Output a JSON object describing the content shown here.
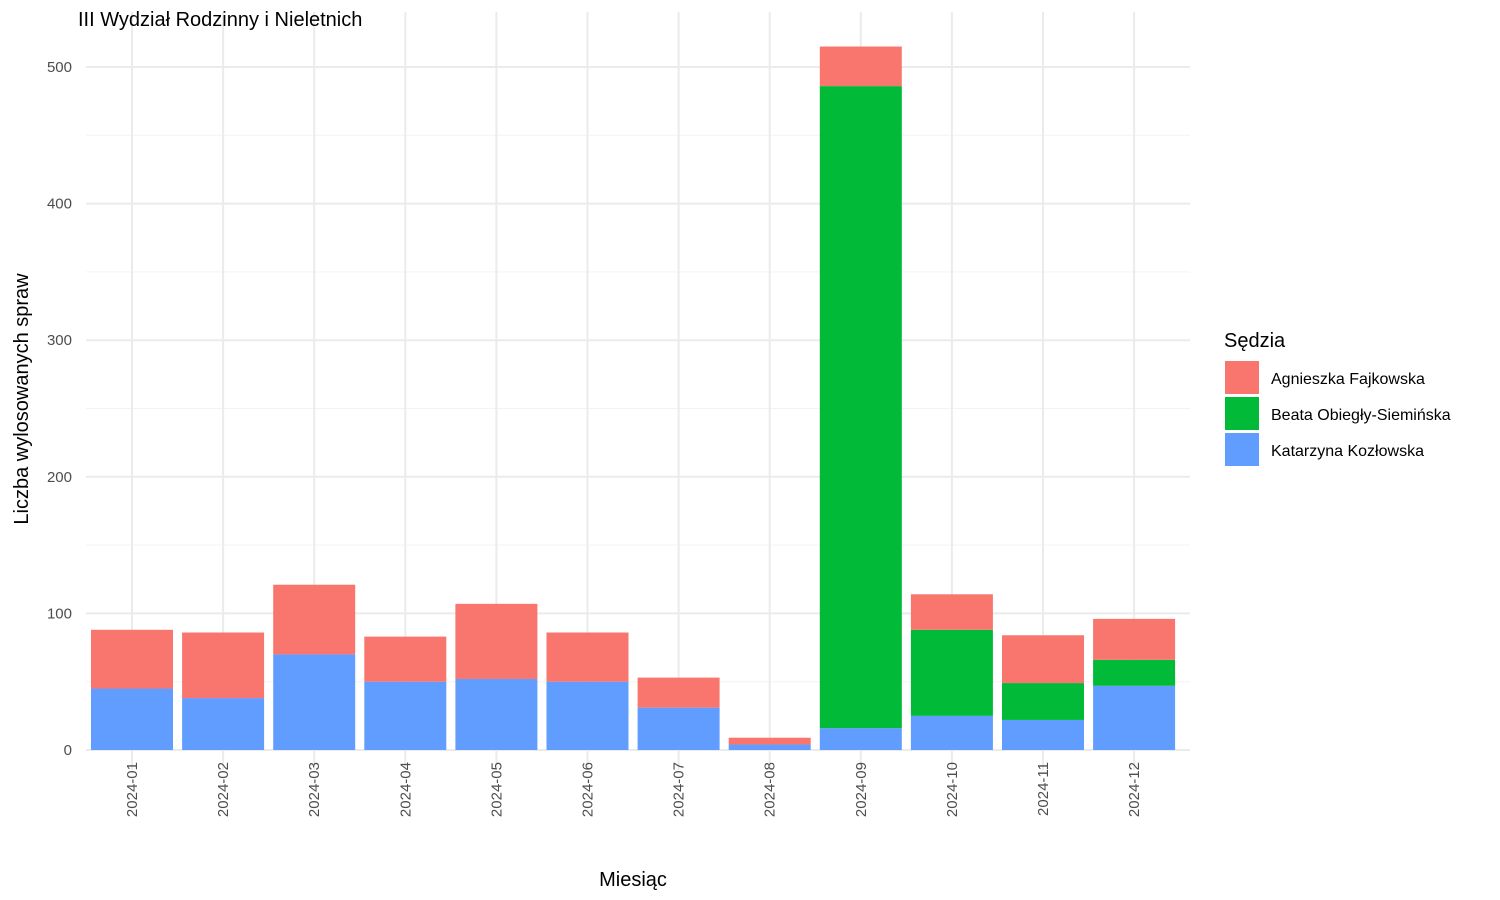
{
  "chart_data": {
    "type": "bar",
    "stacked": true,
    "title": "III Wydział Rodzinny i Nieletnich",
    "xlabel": "Miesiąc",
    "ylabel": "Liczba wylosowanych spraw",
    "ylim": [
      0,
      520
    ],
    "yticks": [
      0,
      100,
      200,
      300,
      400,
      500
    ],
    "grid": true,
    "legend": {
      "title": "Sędzia",
      "position": "right"
    },
    "categories": [
      "2024-01",
      "2024-02",
      "2024-03",
      "2024-04",
      "2024-05",
      "2024-06",
      "2024-07",
      "2024-08",
      "2024-09",
      "2024-10",
      "2024-11",
      "2024-12"
    ],
    "series": [
      {
        "name": "Katarzyna Kozłowska",
        "color": "#619CFF",
        "values": [
          45,
          38,
          70,
          50,
          52,
          50,
          31,
          4,
          16,
          25,
          22,
          47
        ]
      },
      {
        "name": "Beata Obiegły-Siemińska",
        "color": "#00BA38",
        "values": [
          0,
          0,
          0,
          0,
          0,
          0,
          0,
          0,
          470,
          63,
          27,
          19
        ]
      },
      {
        "name": "Agnieszka Fajkowska",
        "color": "#F8766D",
        "values": [
          43,
          48,
          51,
          33,
          55,
          36,
          22,
          5,
          29,
          26,
          35,
          30
        ]
      }
    ],
    "legend_order": [
      "Agnieszka Fajkowska",
      "Beata Obiegły-Siemińska",
      "Katarzyna Kozłowska"
    ]
  }
}
